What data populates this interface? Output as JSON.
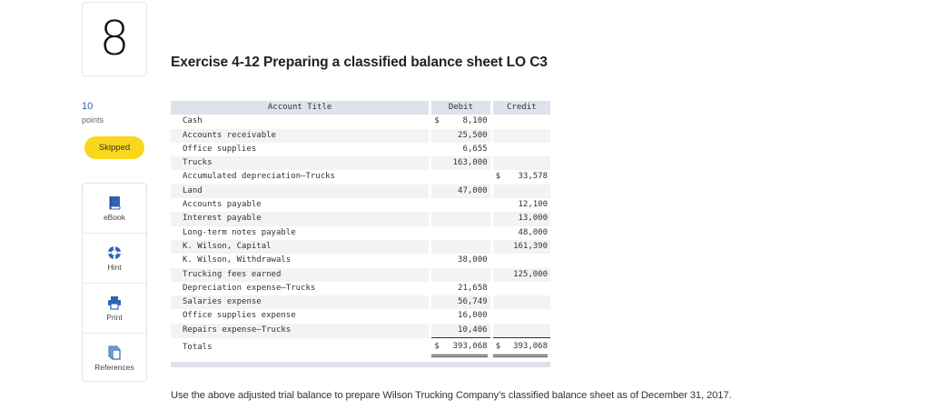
{
  "question": {
    "number": "8",
    "points_value": "10",
    "points_label": "points",
    "status": "Skipped",
    "status_color": "#f9d71c"
  },
  "tools": [
    {
      "label": "eBook",
      "icon": "book-icon"
    },
    {
      "label": "Hint",
      "icon": "lifebuoy-icon"
    },
    {
      "label": "Print",
      "icon": "printer-icon"
    },
    {
      "label": "References",
      "icon": "documents-icon"
    }
  ],
  "exercise": {
    "title": "Exercise 4-12 Preparing a classified balance sheet LO C3"
  },
  "trial_balance": {
    "headers": {
      "account": "Account Title",
      "debit": "Debit",
      "credit": "Credit"
    },
    "rows": [
      {
        "account": "Cash",
        "debit": "8,100",
        "debit_dollar": "$",
        "credit": "",
        "credit_dollar": ""
      },
      {
        "account": "Accounts receivable",
        "debit": "25,500",
        "debit_dollar": "",
        "credit": "",
        "credit_dollar": ""
      },
      {
        "account": "Office supplies",
        "debit": "6,655",
        "debit_dollar": "",
        "credit": "",
        "credit_dollar": ""
      },
      {
        "account": "Trucks",
        "debit": "163,000",
        "debit_dollar": "",
        "credit": "",
        "credit_dollar": ""
      },
      {
        "account": "Accumulated depreciation—Trucks",
        "debit": "",
        "debit_dollar": "",
        "credit": "33,578",
        "credit_dollar": "$"
      },
      {
        "account": "Land",
        "debit": "47,000",
        "debit_dollar": "",
        "credit": "",
        "credit_dollar": ""
      },
      {
        "account": "Accounts payable",
        "debit": "",
        "debit_dollar": "",
        "credit": "12,100",
        "credit_dollar": ""
      },
      {
        "account": "Interest payable",
        "debit": "",
        "debit_dollar": "",
        "credit": "13,000",
        "credit_dollar": ""
      },
      {
        "account": "Long-term notes payable",
        "debit": "",
        "debit_dollar": "",
        "credit": "48,000",
        "credit_dollar": ""
      },
      {
        "account": "K. Wilson, Capital",
        "debit": "",
        "debit_dollar": "",
        "credit": "161,390",
        "credit_dollar": ""
      },
      {
        "account": "K. Wilson, Withdrawals",
        "debit": "38,000",
        "debit_dollar": "",
        "credit": "",
        "credit_dollar": ""
      },
      {
        "account": "Trucking fees earned",
        "debit": "",
        "debit_dollar": "",
        "credit": "125,000",
        "credit_dollar": ""
      },
      {
        "account": "Depreciation expense—Trucks",
        "debit": "21,658",
        "debit_dollar": "",
        "credit": "",
        "credit_dollar": ""
      },
      {
        "account": "Salaries expense",
        "debit": "56,749",
        "debit_dollar": "",
        "credit": "",
        "credit_dollar": ""
      },
      {
        "account": "Office supplies expense",
        "debit": "16,000",
        "debit_dollar": "",
        "credit": "",
        "credit_dollar": ""
      },
      {
        "account": "Repairs expense—Trucks",
        "debit": "10,406",
        "debit_dollar": "",
        "credit": "",
        "credit_dollar": ""
      }
    ],
    "totals": {
      "label": "Totals",
      "debit": "393,068",
      "debit_dollar": "$",
      "credit": "393,068",
      "credit_dollar": "$"
    }
  },
  "instructions": "Use the above adjusted trial balance to prepare Wilson Trucking Company’s classified balance sheet as of December 31, 2017."
}
